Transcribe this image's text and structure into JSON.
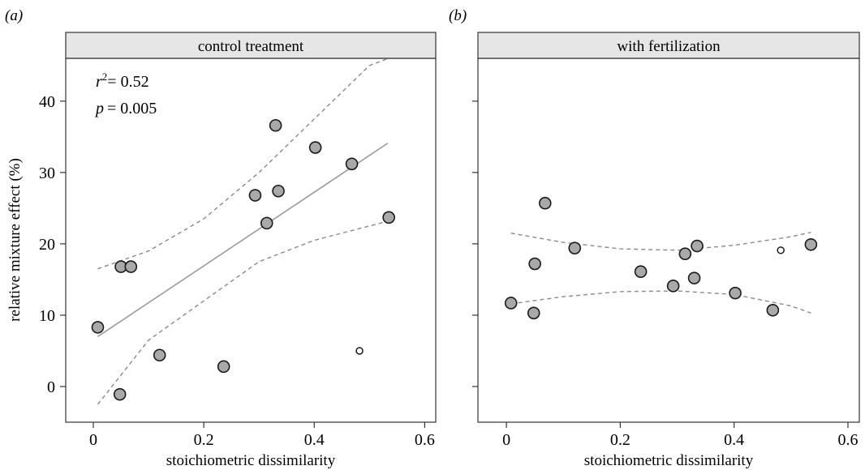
{
  "chart_data": [
    {
      "type": "scatter",
      "panel_label": "(a)",
      "title": "control treatment",
      "xlabel": "stoichiometric dissimilarity",
      "ylabel": "relative mixture effect (%)",
      "xlim": [
        -0.05,
        0.62
      ],
      "ylim": [
        -5,
        46
      ],
      "xticks": [
        "0",
        "0.2",
        "0.4",
        "0.6"
      ],
      "yticks": [
        "0",
        "10",
        "20",
        "30",
        "40"
      ],
      "annotations": {
        "r2_value": "= 0.52",
        "p_value": "= 0.005"
      },
      "points": [
        {
          "x": 0.008,
          "y": 8.3
        },
        {
          "x": 0.05,
          "y": 16.8
        },
        {
          "x": 0.068,
          "y": 16.8
        },
        {
          "x": 0.048,
          "y": -1.1
        },
        {
          "x": 0.12,
          "y": 4.4
        },
        {
          "x": 0.236,
          "y": 2.8
        },
        {
          "x": 0.293,
          "y": 26.8
        },
        {
          "x": 0.314,
          "y": 22.9
        },
        {
          "x": 0.33,
          "y": 36.6
        },
        {
          "x": 0.335,
          "y": 27.4
        },
        {
          "x": 0.402,
          "y": 33.5
        },
        {
          "x": 0.468,
          "y": 31.2
        },
        {
          "x": 0.535,
          "y": 23.7
        }
      ],
      "outliers": [
        {
          "x": 0.482,
          "y": 5.0
        }
      ],
      "fit_line": {
        "x": [
          0.008,
          0.533
        ],
        "y": [
          7.0,
          34.1
        ]
      },
      "confidence_band": {
        "x": [
          0.008,
          0.1,
          0.2,
          0.3,
          0.4,
          0.5,
          0.535
        ],
        "upper": [
          16.5,
          19.0,
          23.5,
          30.0,
          37.5,
          45.0,
          48.5
        ],
        "lower": [
          -2.5,
          6.5,
          12.0,
          17.5,
          20.5,
          22.5,
          23.2
        ]
      },
      "grid": false
    },
    {
      "type": "scatter",
      "panel_label": "(b)",
      "title": "with fertilization",
      "xlabel": "stoichiometric dissimilarity",
      "ylabel": "",
      "xlim": [
        -0.05,
        0.62
      ],
      "ylim": [
        -5,
        46
      ],
      "xticks": [
        "0",
        "0.2",
        "0.4",
        "0.6"
      ],
      "yticks": [],
      "points": [
        {
          "x": 0.008,
          "y": 11.7
        },
        {
          "x": 0.048,
          "y": 10.3
        },
        {
          "x": 0.05,
          "y": 17.2
        },
        {
          "x": 0.068,
          "y": 25.7
        },
        {
          "x": 0.12,
          "y": 19.4
        },
        {
          "x": 0.236,
          "y": 16.1
        },
        {
          "x": 0.293,
          "y": 14.1
        },
        {
          "x": 0.314,
          "y": 18.6
        },
        {
          "x": 0.33,
          "y": 15.2
        },
        {
          "x": 0.335,
          "y": 19.7
        },
        {
          "x": 0.402,
          "y": 13.1
        },
        {
          "x": 0.468,
          "y": 10.7
        },
        {
          "x": 0.535,
          "y": 19.9
        }
      ],
      "outliers": [
        {
          "x": 0.482,
          "y": 19.1
        }
      ],
      "confidence_band": {
        "x": [
          0.008,
          0.1,
          0.2,
          0.3,
          0.4,
          0.5,
          0.535
        ],
        "upper": [
          21.5,
          20.2,
          19.3,
          19.1,
          19.8,
          21.0,
          21.6
        ],
        "lower": [
          11.6,
          12.6,
          13.3,
          13.4,
          12.9,
          11.3,
          10.3
        ]
      },
      "grid": false
    }
  ],
  "colors": {
    "point_fill": "#a9a9a9",
    "point_stroke": "#1a1a1a",
    "fit_line": "#9a9a9a",
    "band": "#8a8a8a",
    "strip_fill": "#e6e6e6",
    "frame": "#333333"
  }
}
